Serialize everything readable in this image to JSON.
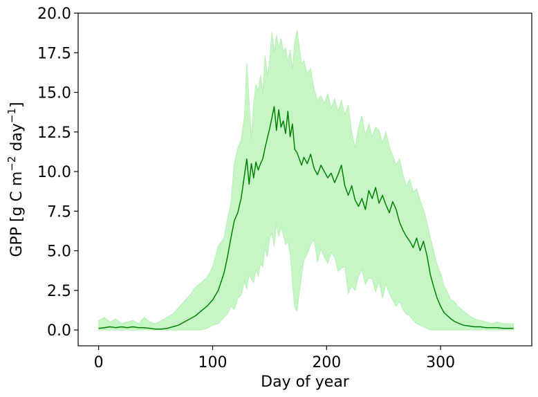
{
  "chart_data": {
    "type": "area",
    "title": "",
    "xlabel": "Day of year",
    "ylabel": "GPP [g C m",
    "ylabel_sup1": "−2",
    "ylabel_mid": " day",
    "ylabel_sup2": "−1",
    "ylabel_end": "]",
    "xlim": [
      -18,
      380
    ],
    "ylim": [
      -1.0,
      20.0
    ],
    "xticks": [
      0,
      100,
      200,
      300
    ],
    "xtick_labels": [
      "0",
      "100",
      "200",
      "300"
    ],
    "yticks": [
      0.0,
      2.5,
      5.0,
      7.5,
      10.0,
      12.5,
      15.0,
      17.5,
      20.0
    ],
    "ytick_labels": [
      "0.0",
      "2.5",
      "5.0",
      "7.5",
      "10.0",
      "12.5",
      "15.0",
      "17.5",
      "20.0"
    ],
    "grid": false,
    "colors": {
      "line": "#008000",
      "band": "#c6f5c6",
      "band_edge": "#b4f0b4"
    },
    "series": [
      {
        "name": "",
        "kind": "line",
        "x": [
          0,
          5,
          10,
          15,
          20,
          25,
          30,
          35,
          40,
          45,
          50,
          55,
          60,
          65,
          70,
          75,
          80,
          85,
          90,
          95,
          100,
          105,
          110,
          113,
          116,
          119,
          122,
          125,
          128,
          130,
          132,
          134,
          136,
          138,
          140,
          142,
          144,
          146,
          148,
          150,
          152,
          154,
          156,
          158,
          160,
          162,
          164,
          166,
          168,
          170,
          172,
          174,
          176,
          178,
          180,
          183,
          186,
          189,
          192,
          195,
          198,
          201,
          204,
          207,
          210,
          213,
          216,
          219,
          222,
          225,
          228,
          231,
          234,
          237,
          240,
          243,
          246,
          249,
          252,
          255,
          258,
          261,
          264,
          267,
          270,
          273,
          276,
          279,
          282,
          285,
          288,
          291,
          294,
          297,
          300,
          303,
          306,
          309,
          312,
          315,
          320,
          325,
          330,
          335,
          340,
          345,
          350,
          355,
          360,
          364
        ],
        "y": [
          0.1,
          0.15,
          0.2,
          0.15,
          0.2,
          0.15,
          0.2,
          0.15,
          0.15,
          0.1,
          0.05,
          0.05,
          0.1,
          0.2,
          0.3,
          0.5,
          0.7,
          0.9,
          1.2,
          1.5,
          1.9,
          2.5,
          3.6,
          4.6,
          5.8,
          6.9,
          7.4,
          8.3,
          9.8,
          10.8,
          9.2,
          10.5,
          9.6,
          10.6,
          10.1,
          10.5,
          10.8,
          11.5,
          12.1,
          12.7,
          13.4,
          14.1,
          12.6,
          13.9,
          12.8,
          13.2,
          12.4,
          13.8,
          12.2,
          13.0,
          11.4,
          11.2,
          10.8,
          10.4,
          10.9,
          10.5,
          11.1,
          10.2,
          9.8,
          10.4,
          10.0,
          9.6,
          9.9,
          9.3,
          9.8,
          10.4,
          9.1,
          8.5,
          9.1,
          8.2,
          7.8,
          8.3,
          7.6,
          8.8,
          8.3,
          9.0,
          8.0,
          8.5,
          7.9,
          7.4,
          8.1,
          7.6,
          6.8,
          6.3,
          5.9,
          5.6,
          5.2,
          5.8,
          5.0,
          5.6,
          4.7,
          3.5,
          2.7,
          2.0,
          1.5,
          1.1,
          0.9,
          0.7,
          0.55,
          0.45,
          0.3,
          0.25,
          0.2,
          0.2,
          0.15,
          0.15,
          0.15,
          0.1,
          0.1,
          0.1
        ]
      },
      {
        "name": "",
        "kind": "band_upper",
        "x": [
          0,
          5,
          10,
          15,
          20,
          25,
          30,
          35,
          40,
          45,
          50,
          55,
          60,
          65,
          70,
          75,
          80,
          85,
          90,
          95,
          100,
          105,
          110,
          113,
          116,
          119,
          122,
          125,
          128,
          130,
          132,
          134,
          136,
          138,
          140,
          142,
          144,
          146,
          148,
          150,
          152,
          154,
          156,
          158,
          160,
          162,
          164,
          166,
          168,
          170,
          172,
          174,
          176,
          178,
          180,
          183,
          186,
          189,
          192,
          195,
          198,
          201,
          204,
          207,
          210,
          213,
          216,
          219,
          222,
          225,
          228,
          231,
          234,
          237,
          240,
          243,
          246,
          249,
          252,
          255,
          258,
          261,
          264,
          267,
          270,
          273,
          276,
          279,
          282,
          285,
          288,
          291,
          294,
          297,
          300,
          303,
          306,
          309,
          312,
          315,
          320,
          325,
          330,
          335,
          340,
          345,
          350,
          355,
          360,
          364
        ],
        "y": [
          0.6,
          0.8,
          0.5,
          0.7,
          0.4,
          0.5,
          0.6,
          0.4,
          0.8,
          0.5,
          0.4,
          0.6,
          0.8,
          1.0,
          1.4,
          1.8,
          2.2,
          2.7,
          3.0,
          3.3,
          4.0,
          5.3,
          5.8,
          7.0,
          8.0,
          10.5,
          11.5,
          12.0,
          13.5,
          16.8,
          14.5,
          12.0,
          14.3,
          15.5,
          15.1,
          16.1,
          14.9,
          17.3,
          16.1,
          17.0,
          18.8,
          17.5,
          18.6,
          17.8,
          18.4,
          17.6,
          17.8,
          16.9,
          17.7,
          16.4,
          18.2,
          18.9,
          17.9,
          16.8,
          17.0,
          16.2,
          16.5,
          15.2,
          14.5,
          14.8,
          14.3,
          14.9,
          14.0,
          14.6,
          13.8,
          14.5,
          13.6,
          14.2,
          12.5,
          11.5,
          12.8,
          13.5,
          12.3,
          13.0,
          12.2,
          12.8,
          12.6,
          11.8,
          12.5,
          11.6,
          11.0,
          10.4,
          10.8,
          9.8,
          9.1,
          9.5,
          8.7,
          8.9,
          8.2,
          7.6,
          6.8,
          5.8,
          5.0,
          4.1,
          3.6,
          2.8,
          2.4,
          1.9,
          1.8,
          1.5,
          1.2,
          0.9,
          0.7,
          0.6,
          0.5,
          0.4,
          0.5,
          0.4,
          0.4,
          0.4
        ]
      },
      {
        "name": "",
        "kind": "band_lower",
        "x": [
          0,
          5,
          10,
          15,
          20,
          25,
          30,
          35,
          40,
          45,
          50,
          55,
          60,
          65,
          70,
          75,
          80,
          85,
          90,
          95,
          100,
          105,
          110,
          113,
          116,
          119,
          122,
          125,
          128,
          130,
          132,
          134,
          136,
          138,
          140,
          142,
          144,
          146,
          148,
          150,
          152,
          154,
          156,
          158,
          160,
          162,
          164,
          166,
          168,
          170,
          172,
          174,
          176,
          178,
          180,
          183,
          186,
          189,
          192,
          195,
          198,
          201,
          204,
          207,
          210,
          213,
          216,
          219,
          222,
          225,
          228,
          231,
          234,
          237,
          240,
          243,
          246,
          249,
          252,
          255,
          258,
          261,
          264,
          267,
          270,
          273,
          276,
          279,
          282,
          285,
          288,
          291,
          294,
          297,
          300,
          303,
          306,
          309,
          312,
          315,
          320,
          325,
          330,
          335,
          340,
          345,
          350,
          355,
          360,
          364
        ],
        "y": [
          0.0,
          0.0,
          0.0,
          0.0,
          0.0,
          0.0,
          0.0,
          0.0,
          0.0,
          0.0,
          0.0,
          0.0,
          0.0,
          0.0,
          0.0,
          0.0,
          0.0,
          0.0,
          0.0,
          0.1,
          0.3,
          0.4,
          0.8,
          1.0,
          1.5,
          1.3,
          2.0,
          2.2,
          3.1,
          2.6,
          3.5,
          3.2,
          3.0,
          3.8,
          3.4,
          4.2,
          4.0,
          5.2,
          4.6,
          5.8,
          6.1,
          5.3,
          6.7,
          5.9,
          6.5,
          6.0,
          5.4,
          5.6,
          4.8,
          3.0,
          1.4,
          1.2,
          2.4,
          3.4,
          4.4,
          4.8,
          5.4,
          5.7,
          4.3,
          5.1,
          4.6,
          4.2,
          4.9,
          4.6,
          3.7,
          3.9,
          4.0,
          2.3,
          2.8,
          2.5,
          3.4,
          3.8,
          2.9,
          3.3,
          3.2,
          2.4,
          3.1,
          2.0,
          2.9,
          2.3,
          1.9,
          1.5,
          1.8,
          1.3,
          1.0,
          0.9,
          0.6,
          0.4,
          0.3,
          0.2,
          0.1,
          0.0,
          0.0,
          0.0,
          0.0,
          0.0,
          0.0,
          0.0,
          0.0,
          0.0,
          0.0,
          0.0,
          0.0,
          0.0,
          0.0,
          0.0,
          0.0,
          0.0,
          0.0,
          0.0
        ]
      }
    ]
  }
}
